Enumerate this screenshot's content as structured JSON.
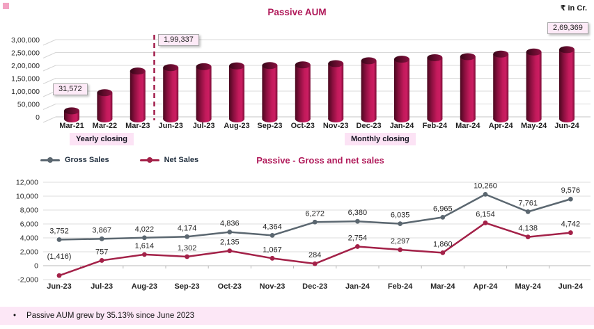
{
  "unit_label": "₹ in Cr.",
  "chart_data": [
    {
      "type": "bar",
      "title": "Passive AUM",
      "categories": [
        "Mar-21",
        "Mar-22",
        "Mar-23",
        "Jun-23",
        "Jul-23",
        "Aug-23",
        "Sep-23",
        "Oct-23",
        "Nov-23",
        "Dec-23",
        "Jan-24",
        "Feb-24",
        "Mar-24",
        "Apr-24",
        "May-24",
        "Jun-24"
      ],
      "values": [
        31572,
        102000,
        186000,
        199337,
        203000,
        206000,
        207500,
        210000,
        215000,
        226000,
        232000,
        238000,
        242000,
        252000,
        260000,
        269369
      ],
      "callouts": [
        {
          "category": "Mar-21",
          "text": "31,572"
        },
        {
          "category": "Jun-23",
          "text": "1,99,337"
        },
        {
          "category": "Jun-24",
          "text": "2,69,369"
        }
      ],
      "y_ticks": [
        "3,00,000",
        "2,50,000",
        "2,00,000",
        "1,50,000",
        "1,00,000",
        "50,000",
        "0"
      ],
      "ylim": [
        0,
        300000
      ],
      "grid": true,
      "axis_group_labels": [
        "Yearly closing",
        "Monthly closing"
      ],
      "divider": {
        "style": "dashed",
        "between": [
          "Mar-23",
          "Jun-23"
        ],
        "color": "#a11c4a"
      },
      "bar_colors": {
        "dark": "#4a081f",
        "mid": "#8c1040",
        "bright": "#c21a5b",
        "edge": "#7b0e37",
        "top_dark": "#350617",
        "top_mid": "#5f0b2b",
        "top_light": "#891140"
      }
    },
    {
      "type": "line",
      "title": "Passive - Gross and net sales",
      "categories": [
        "Jun-23",
        "Jul-23",
        "Aug-23",
        "Sep-23",
        "Oct-23",
        "Nov-23",
        "Dec-23",
        "Jan-24",
        "Feb-24",
        "Mar-24",
        "Apr-24",
        "May-24",
        "Jun-24"
      ],
      "series": [
        {
          "name": "Gross Sales",
          "color": "#5b6770",
          "values": [
            3752,
            3867,
            4022,
            4174,
            4836,
            4364,
            6272,
            6380,
            6035,
            6965,
            10260,
            7761,
            9576
          ],
          "labels": [
            "3,752",
            "3,867",
            "4,022",
            "4,174",
            "4,836",
            "4,364",
            "6,272",
            "6,380",
            "6,035",
            "6,965",
            "10,260",
            "7,761",
            "9,576"
          ]
        },
        {
          "name": "Net Sales",
          "color": "#a32148",
          "values": [
            -1416,
            757,
            1614,
            1302,
            2135,
            1067,
            284,
            2754,
            2297,
            1860,
            6154,
            4138,
            4742
          ],
          "labels": [
            "(1,416)",
            "757",
            "1,614",
            "1,302",
            "2,135",
            "1,067",
            "284",
            "2,754",
            "2,297",
            "1,860",
            "6,154",
            "4,138",
            "4,742"
          ]
        }
      ],
      "y_ticks": [
        "12,000",
        "10,000",
        "8,000",
        "6,000",
        "4,000",
        "2,000",
        "0",
        "-2,000"
      ],
      "ylim": [
        -2000,
        12000
      ],
      "grid": true,
      "legend_position": "top-left"
    }
  ],
  "footer": {
    "bullet": "•",
    "text": "Passive AUM grew by 35.13% since June 2023"
  }
}
